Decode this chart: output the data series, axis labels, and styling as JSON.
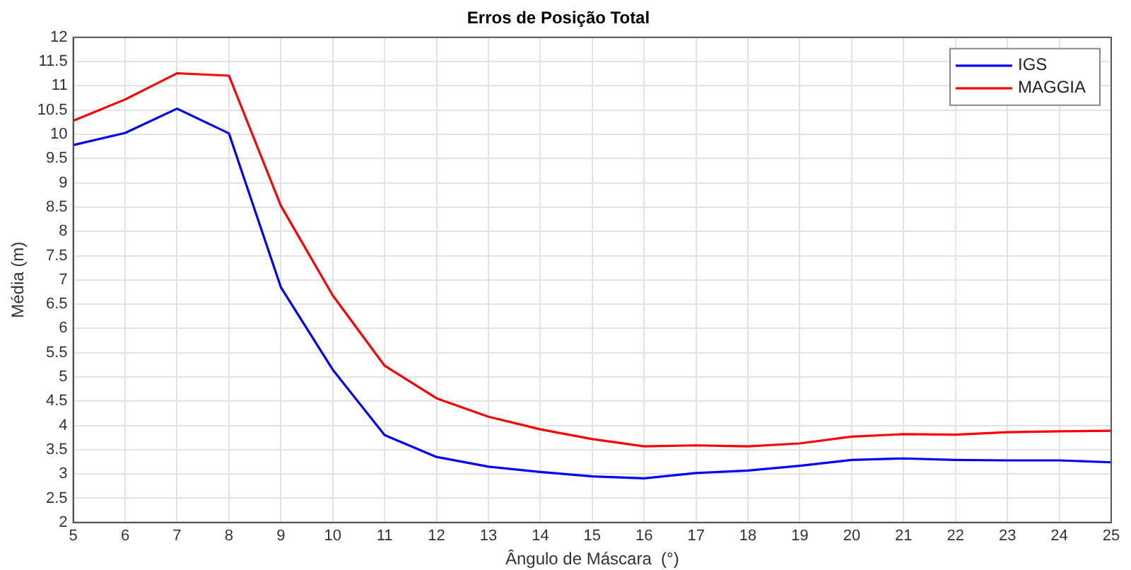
{
  "chart_data": {
    "type": "line",
    "title": "Erros de Posição Total",
    "xlabel": "Ângulo de Máscara  (°)",
    "ylabel": "Média (m)",
    "x": [
      5,
      6,
      7,
      8,
      9,
      10,
      11,
      12,
      13,
      14,
      15,
      16,
      17,
      18,
      19,
      20,
      21,
      22,
      23,
      24,
      25
    ],
    "series": [
      {
        "name": "IGS",
        "color": "#0000ff",
        "values": [
          9.78,
          10.03,
          10.53,
          10.02,
          6.85,
          5.15,
          3.8,
          3.35,
          3.15,
          3.04,
          2.95,
          2.91,
          3.02,
          3.07,
          3.17,
          3.29,
          3.32,
          3.29,
          3.28,
          3.28,
          3.24
        ]
      },
      {
        "name": "MAGGIA",
        "color": "#ff0000",
        "values": [
          10.28,
          10.72,
          11.26,
          11.21,
          8.53,
          6.68,
          5.23,
          4.56,
          4.18,
          3.92,
          3.72,
          3.57,
          3.59,
          3.57,
          3.63,
          3.77,
          3.82,
          3.81,
          3.86,
          3.88,
          3.89
        ]
      }
    ],
    "xlim": [
      5,
      25
    ],
    "xticks": [
      5,
      6,
      7,
      8,
      9,
      10,
      11,
      12,
      13,
      14,
      15,
      16,
      17,
      18,
      19,
      20,
      21,
      22,
      23,
      24,
      25
    ],
    "ylim": [
      2,
      12
    ],
    "yticks": [
      2,
      2.5,
      3,
      3.5,
      4,
      4.5,
      5,
      5.5,
      6,
      6.5,
      7,
      7.5,
      8,
      8.5,
      9,
      9.5,
      10,
      10.5,
      11,
      11.5,
      12
    ],
    "grid": true,
    "legend": "top right",
    "marker": "none",
    "line_style": "solid"
  }
}
